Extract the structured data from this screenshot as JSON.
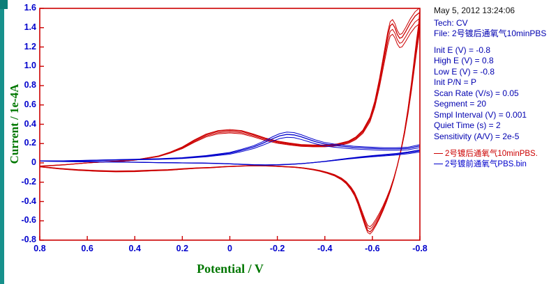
{
  "colors": {
    "frame": "#cc0000",
    "tick_label": "#0000cc",
    "axis_title": "#007700",
    "panel_text": "#0000b0",
    "timestamp": "#111111",
    "red_series": "#cc0000",
    "blue_series": "#0000cc",
    "edge": "#17918c",
    "edge_dark": "#0b7e78"
  },
  "panel": {
    "timestamp": "May 5, 2012   13:24:06",
    "lines": [
      {
        "name": "tech",
        "text": "Tech: CV"
      },
      {
        "name": "file",
        "text": "File: 2号镀后通氧气10minPBS"
      },
      {
        "name": "spacer",
        "text": ""
      },
      {
        "name": "init-e",
        "text": "Init E (V) = -0.8"
      },
      {
        "name": "high-e",
        "text": "High E (V) = 0.8"
      },
      {
        "name": "low-e",
        "text": "Low E (V) = -0.8"
      },
      {
        "name": "init-pn",
        "text": "Init P/N = P"
      },
      {
        "name": "scan-rate",
        "text": "Scan Rate (V/s) = 0.05"
      },
      {
        "name": "segment",
        "text": "Segment = 20"
      },
      {
        "name": "smpl-interval",
        "text": "Smpl Interval (V) = 0.001"
      },
      {
        "name": "quiet-time",
        "text": "Quiet Time (s) = 2"
      },
      {
        "name": "sensitivity",
        "text": "Sensitivity (A/V) = 2e-5"
      }
    ],
    "legend": [
      {
        "name": "legend-red",
        "text": "2号镀后通氧气10minPBS.",
        "color": "#cc0000"
      },
      {
        "name": "legend-blue",
        "text": "2号镀前通氧气PBS.bin",
        "color": "#0000cc"
      }
    ]
  },
  "chart_data": {
    "type": "line",
    "title": "",
    "xlabel": "Potential / V",
    "ylabel": "Current / 1e-4A",
    "xlim": [
      0.8,
      -0.8
    ],
    "ylim": [
      -0.8,
      1.6
    ],
    "x_ticks": [
      "0.8",
      "0.6",
      "0.4",
      "0.2",
      "0",
      "-0.2",
      "-0.4",
      "-0.6",
      "-0.8"
    ],
    "y_ticks": [
      "1.6",
      "1.4",
      "1.2",
      "1.0",
      "0.8",
      "0.6",
      "0.4",
      "0.2",
      "0",
      "-0.2",
      "-0.4",
      "-0.6",
      "-0.8"
    ],
    "grid": false,
    "legend_position": "right-panel",
    "series": [
      {
        "key": "after-plating-o2-10min-pbs",
        "name": "2号镀后通氧气10minPBS.",
        "color": "#cc0000",
        "bundle": [
          1.0,
          0.96,
          0.925,
          1.03
        ],
        "points": [
          [
            0.8,
            -0.035
          ],
          [
            0.7,
            -0.02
          ],
          [
            0.6,
            0.0
          ],
          [
            0.5,
            0.015
          ],
          [
            0.45,
            0.02
          ],
          [
            0.4,
            0.03
          ],
          [
            0.35,
            0.05
          ],
          [
            0.3,
            0.07
          ],
          [
            0.25,
            0.11
          ],
          [
            0.2,
            0.16
          ],
          [
            0.15,
            0.23
          ],
          [
            0.1,
            0.29
          ],
          [
            0.05,
            0.325
          ],
          [
            0.0,
            0.335
          ],
          [
            -0.05,
            0.325
          ],
          [
            -0.1,
            0.29
          ],
          [
            -0.15,
            0.25
          ],
          [
            -0.2,
            0.22
          ],
          [
            -0.25,
            0.2
          ],
          [
            -0.3,
            0.185
          ],
          [
            -0.35,
            0.18
          ],
          [
            -0.4,
            0.18
          ],
          [
            -0.45,
            0.19
          ],
          [
            -0.5,
            0.22
          ],
          [
            -0.53,
            0.26
          ],
          [
            -0.56,
            0.33
          ],
          [
            -0.59,
            0.46
          ],
          [
            -0.61,
            0.62
          ],
          [
            -0.63,
            0.85
          ],
          [
            -0.65,
            1.12
          ],
          [
            -0.665,
            1.32
          ],
          [
            -0.675,
            1.42
          ],
          [
            -0.685,
            1.44
          ],
          [
            -0.695,
            1.4
          ],
          [
            -0.705,
            1.33
          ],
          [
            -0.715,
            1.29
          ],
          [
            -0.725,
            1.3
          ],
          [
            -0.74,
            1.36
          ],
          [
            -0.76,
            1.45
          ],
          [
            -0.78,
            1.52
          ],
          [
            -0.8,
            1.56
          ],
          [
            -0.795,
            1.4
          ],
          [
            -0.785,
            1.22
          ],
          [
            -0.775,
            1.02
          ],
          [
            -0.765,
            0.82
          ],
          [
            -0.75,
            0.55
          ],
          [
            -0.735,
            0.32
          ],
          [
            -0.72,
            0.13
          ],
          [
            -0.705,
            -0.03
          ],
          [
            -0.69,
            -0.17
          ],
          [
            -0.675,
            -0.29
          ],
          [
            -0.66,
            -0.39
          ],
          [
            -0.645,
            -0.48
          ],
          [
            -0.63,
            -0.56
          ],
          [
            -0.615,
            -0.63
          ],
          [
            -0.6,
            -0.69
          ],
          [
            -0.59,
            -0.715
          ],
          [
            -0.58,
            -0.7
          ],
          [
            -0.57,
            -0.64
          ],
          [
            -0.555,
            -0.53
          ],
          [
            -0.54,
            -0.42
          ],
          [
            -0.525,
            -0.33
          ],
          [
            -0.51,
            -0.27
          ],
          [
            -0.49,
            -0.21
          ],
          [
            -0.47,
            -0.17
          ],
          [
            -0.44,
            -0.13
          ],
          [
            -0.41,
            -0.105
          ],
          [
            -0.38,
            -0.085
          ],
          [
            -0.35,
            -0.07
          ],
          [
            -0.31,
            -0.055
          ],
          [
            -0.27,
            -0.045
          ],
          [
            -0.23,
            -0.04
          ],
          [
            -0.18,
            -0.033
          ],
          [
            -0.13,
            -0.03
          ],
          [
            -0.08,
            -0.03
          ],
          [
            -0.03,
            -0.035
          ],
          [
            0.02,
            -0.04
          ],
          [
            0.08,
            -0.05
          ],
          [
            0.14,
            -0.055
          ],
          [
            0.2,
            -0.065
          ],
          [
            0.26,
            -0.075
          ],
          [
            0.32,
            -0.08
          ],
          [
            0.4,
            -0.088
          ],
          [
            0.48,
            -0.09
          ],
          [
            0.56,
            -0.085
          ],
          [
            0.64,
            -0.075
          ],
          [
            0.72,
            -0.06
          ],
          [
            0.8,
            -0.04
          ]
        ]
      },
      {
        "key": "before-plating-o2-pbs",
        "name": "2号镀前通氧气PBS.bin",
        "color": "#0000cc",
        "bundle": [
          1.0,
          0.9,
          1.08
        ],
        "points": [
          [
            0.8,
            0.02
          ],
          [
            0.7,
            0.02
          ],
          [
            0.6,
            0.025
          ],
          [
            0.5,
            0.03
          ],
          [
            0.4,
            0.035
          ],
          [
            0.3,
            0.04
          ],
          [
            0.25,
            0.045
          ],
          [
            0.2,
            0.05
          ],
          [
            0.15,
            0.06
          ],
          [
            0.1,
            0.07
          ],
          [
            0.05,
            0.085
          ],
          [
            0.0,
            0.1
          ],
          [
            -0.05,
            0.13
          ],
          [
            -0.1,
            0.165
          ],
          [
            -0.14,
            0.205
          ],
          [
            -0.18,
            0.25
          ],
          [
            -0.21,
            0.28
          ],
          [
            -0.24,
            0.295
          ],
          [
            -0.27,
            0.29
          ],
          [
            -0.3,
            0.27
          ],
          [
            -0.33,
            0.245
          ],
          [
            -0.36,
            0.22
          ],
          [
            -0.4,
            0.195
          ],
          [
            -0.44,
            0.18
          ],
          [
            -0.48,
            0.17
          ],
          [
            -0.52,
            0.16
          ],
          [
            -0.56,
            0.155
          ],
          [
            -0.6,
            0.15
          ],
          [
            -0.65,
            0.145
          ],
          [
            -0.7,
            0.145
          ],
          [
            -0.75,
            0.15
          ],
          [
            -0.8,
            0.175
          ],
          [
            -0.8,
            0.125
          ],
          [
            -0.75,
            0.105
          ],
          [
            -0.7,
            0.09
          ],
          [
            -0.65,
            0.08
          ],
          [
            -0.6,
            0.07
          ],
          [
            -0.55,
            0.058
          ],
          [
            -0.5,
            0.045
          ],
          [
            -0.45,
            0.03
          ],
          [
            -0.4,
            0.015
          ],
          [
            -0.35,
            0.003
          ],
          [
            -0.3,
            -0.008
          ],
          [
            -0.25,
            -0.015
          ],
          [
            -0.2,
            -0.02
          ],
          [
            -0.15,
            -0.022
          ],
          [
            -0.1,
            -0.02
          ],
          [
            -0.05,
            -0.015
          ],
          [
            0.0,
            -0.01
          ],
          [
            0.06,
            -0.005
          ],
          [
            0.12,
            -0.002
          ],
          [
            0.2,
            0.0
          ],
          [
            0.3,
            0.003
          ],
          [
            0.4,
            0.007
          ],
          [
            0.5,
            0.01
          ],
          [
            0.6,
            0.012
          ],
          [
            0.7,
            0.015
          ],
          [
            0.8,
            0.02
          ]
        ]
      }
    ]
  }
}
